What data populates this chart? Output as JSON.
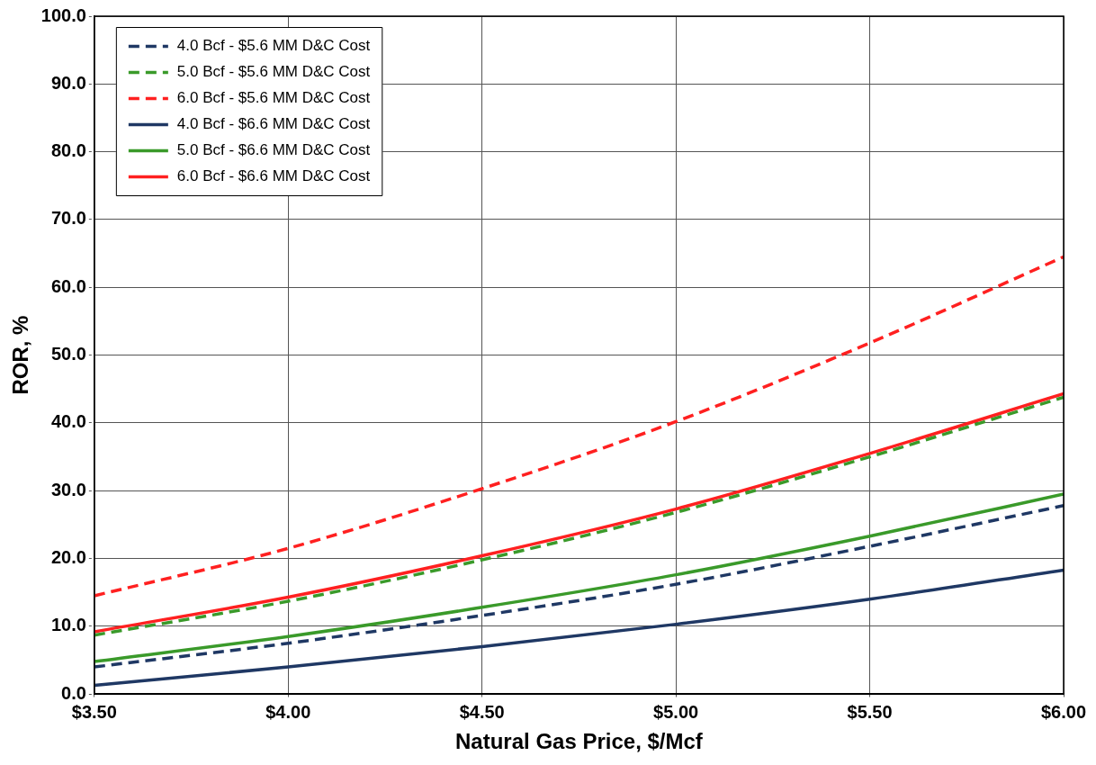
{
  "chart_data": {
    "type": "line",
    "xlabel": "Natural Gas Price, $/Mcf",
    "ylabel": "ROR, %",
    "xlim": [
      3.5,
      6.0
    ],
    "xticks": [
      {
        "value": 3.5,
        "label": "$3.50"
      },
      {
        "value": 4.0,
        "label": "$4.00"
      },
      {
        "value": 4.5,
        "label": "$4.50"
      },
      {
        "value": 5.0,
        "label": "$5.00"
      },
      {
        "value": 5.5,
        "label": "$5.50"
      },
      {
        "value": 6.0,
        "label": "$6.00"
      }
    ],
    "ylim": [
      0,
      100
    ],
    "yticks": [
      {
        "value": 0,
        "label": "0.0"
      },
      {
        "value": 10,
        "label": "10.0"
      },
      {
        "value": 20,
        "label": "20.0"
      },
      {
        "value": 30,
        "label": "30.0"
      },
      {
        "value": 40,
        "label": "40.0"
      },
      {
        "value": 50,
        "label": "50.0"
      },
      {
        "value": 60,
        "label": "60.0"
      },
      {
        "value": 70,
        "label": "70.0"
      },
      {
        "value": 80,
        "label": "80.0"
      },
      {
        "value": 90,
        "label": "90.0"
      },
      {
        "value": 100,
        "label": "100.0"
      }
    ],
    "x": [
      3.5,
      4.0,
      4.5,
      5.0,
      5.5,
      6.0
    ],
    "grid": true,
    "legend": "top left",
    "marker": "none",
    "series": [
      {
        "name": "4.0 Bcf - $5.6 MM D&C Cost",
        "color": "#1f3864",
        "line_style": "dashed",
        "values": [
          4.0,
          7.5,
          11.6,
          16.2,
          21.8,
          27.8
        ]
      },
      {
        "name": "5.0 Bcf - $5.6 MM D&C Cost",
        "color": "#3a9a2a",
        "line_style": "dashed",
        "values": [
          8.7,
          13.7,
          19.8,
          26.8,
          35.0,
          43.8
        ]
      },
      {
        "name": "6.0 Bcf - $5.6 MM D&C Cost",
        "color": "#ff2020",
        "line_style": "dashed",
        "values": [
          14.5,
          21.5,
          30.3,
          40.2,
          51.8,
          64.5
        ]
      },
      {
        "name": "4.0 Bcf - $6.6 MM D&C Cost",
        "color": "#1f3864",
        "line_style": "solid",
        "values": [
          1.3,
          4.0,
          7.0,
          10.3,
          14.0,
          18.3
        ]
      },
      {
        "name": "5.0 Bcf - $6.6 MM D&C Cost",
        "color": "#3a9a2a",
        "line_style": "solid",
        "values": [
          4.8,
          8.5,
          12.8,
          17.6,
          23.3,
          29.5
        ]
      },
      {
        "name": "6.0 Bcf - $6.6 MM D&C Cost",
        "color": "#ff2020",
        "line_style": "solid",
        "values": [
          9.2,
          14.3,
          20.4,
          27.3,
          35.5,
          44.3
        ]
      }
    ]
  }
}
